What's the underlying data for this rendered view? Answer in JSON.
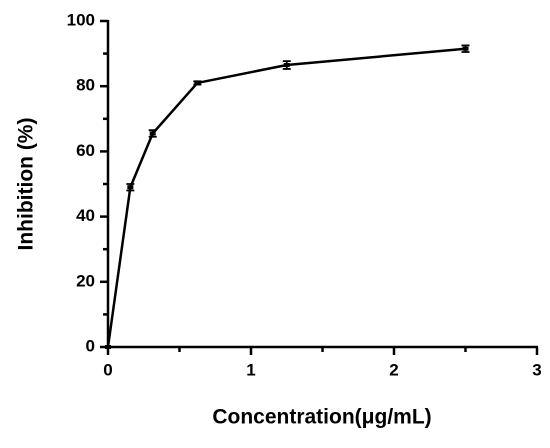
{
  "chart_data": {
    "type": "line",
    "x_label": "Concentration(μg/mL)",
    "y_label": "Inhibition (%)",
    "x": [
      0,
      0.15625,
      0.3125,
      0.625,
      1.25,
      2.5
    ],
    "values": [
      0,
      49,
      65.5,
      81,
      86.5,
      91.5
    ],
    "errors": [
      null,
      1,
      1,
      0.5,
      1.2,
      1
    ],
    "color": "#000000",
    "xlim": [
      0,
      3
    ],
    "xticks": [
      0,
      1,
      2,
      3
    ],
    "x_minor_ticks": [
      0.5,
      1.5,
      2.5
    ],
    "ylim": [
      0,
      100
    ],
    "yticks": [
      0,
      20,
      40,
      60,
      80,
      100
    ],
    "y_minor_ticks": [
      10,
      30,
      50,
      70,
      90
    ]
  }
}
